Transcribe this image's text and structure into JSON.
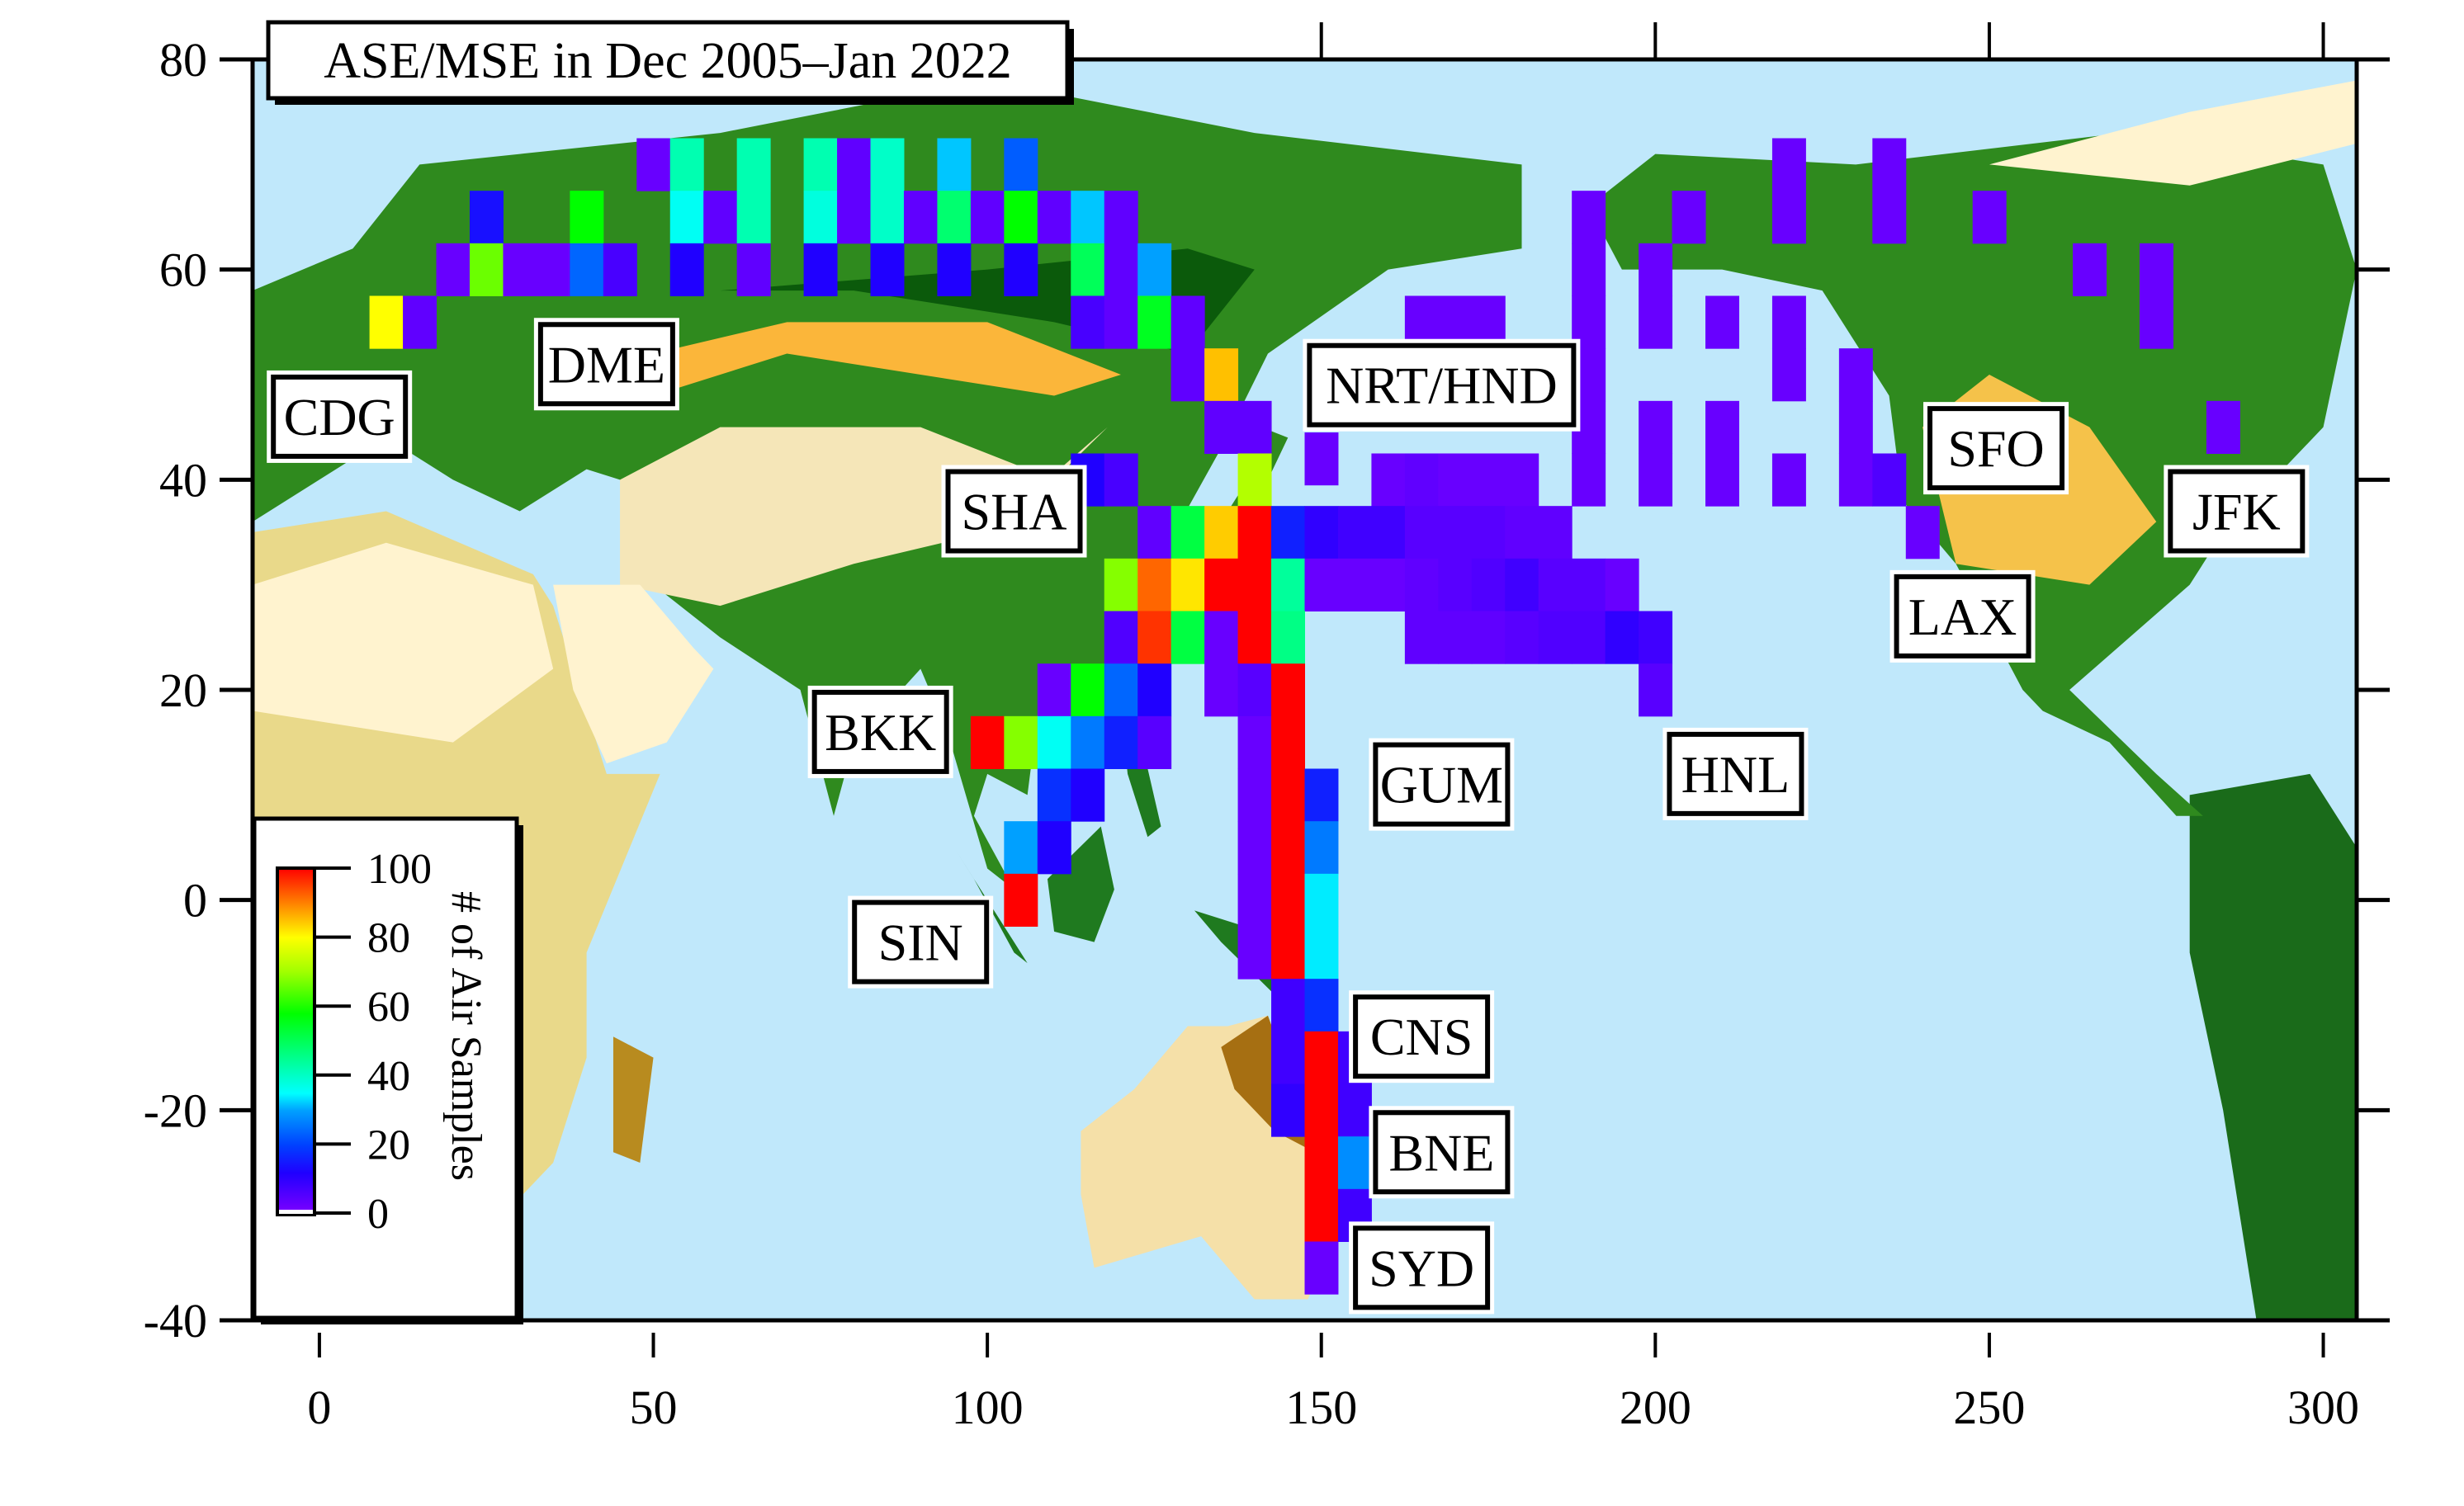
{
  "chart_data": {
    "type": "heatmap",
    "title": "ASE/MSE in Dec 2005–Jan 2022",
    "xlabel": "",
    "ylabel": "",
    "xlim": [
      -10,
      305
    ],
    "ylim": [
      -40,
      80
    ],
    "x_ticks": [
      0,
      50,
      100,
      150,
      200,
      250,
      300
    ],
    "y_ticks": [
      -40,
      -20,
      0,
      20,
      40,
      60,
      80
    ],
    "grid": false,
    "cell_size_deg": [
      5,
      5
    ],
    "background": "global land cover map (ocean light blue)",
    "colorbar": {
      "label": "# of Air Samples",
      "ticks": [
        0,
        20,
        40,
        60,
        80,
        100
      ],
      "range": [
        0,
        100
      ],
      "colormap": [
        "#8000ff",
        "#0000ff",
        "#00a0ff",
        "#00ffff",
        "#00ff80",
        "#00ff00",
        "#80ff00",
        "#ffff00",
        "#ff8000",
        "#ff0000"
      ],
      "position": "lower-left inside plot"
    },
    "airport_labels": [
      {
        "code": "CDG",
        "x": 3,
        "y": 46
      },
      {
        "code": "DME",
        "x": 43,
        "y": 51
      },
      {
        "code": "SHA",
        "x": 104,
        "y": 37
      },
      {
        "code": "NRT/HND",
        "x": 168,
        "y": 49
      },
      {
        "code": "BKK",
        "x": 84,
        "y": 16
      },
      {
        "code": "SIN",
        "x": 90,
        "y": -4
      },
      {
        "code": "GUM",
        "x": 168,
        "y": 11
      },
      {
        "code": "HNL",
        "x": 212,
        "y": 12
      },
      {
        "code": "SFO",
        "x": 251,
        "y": 43
      },
      {
        "code": "LAX",
        "x": 246,
        "y": 27
      },
      {
        "code": "JFK",
        "x": 287,
        "y": 37
      },
      {
        "code": "CNS",
        "x": 165,
        "y": -13
      },
      {
        "code": "BNE",
        "x": 168,
        "y": -24
      },
      {
        "code": "SYD",
        "x": 165,
        "y": -35
      }
    ],
    "cells": [
      {
        "lon": 50,
        "lat": 70,
        "n": 3
      },
      {
        "lon": 55,
        "lat": 70,
        "n": 42
      },
      {
        "lon": 65,
        "lat": 70,
        "n": 42
      },
      {
        "lon": 75,
        "lat": 70,
        "n": 42
      },
      {
        "lon": 80,
        "lat": 70,
        "n": 4
      },
      {
        "lon": 85,
        "lat": 70,
        "n": 40
      },
      {
        "lon": 95,
        "lat": 70,
        "n": 32
      },
      {
        "lon": 105,
        "lat": 70,
        "n": 23
      },
      {
        "lon": 25,
        "lat": 65,
        "n": 14
      },
      {
        "lon": 40,
        "lat": 65,
        "n": 58
      },
      {
        "lon": 55,
        "lat": 65,
        "n": 36
      },
      {
        "lon": 60,
        "lat": 65,
        "n": 4
      },
      {
        "lon": 65,
        "lat": 65,
        "n": 42
      },
      {
        "lon": 75,
        "lat": 65,
        "n": 38
      },
      {
        "lon": 80,
        "lat": 65,
        "n": 4
      },
      {
        "lon": 85,
        "lat": 65,
        "n": 40
      },
      {
        "lon": 90,
        "lat": 65,
        "n": 4
      },
      {
        "lon": 95,
        "lat": 65,
        "n": 48
      },
      {
        "lon": 100,
        "lat": 65,
        "n": 4
      },
      {
        "lon": 105,
        "lat": 65,
        "n": 58
      },
      {
        "lon": 110,
        "lat": 65,
        "n": 4
      },
      {
        "lon": 115,
        "lat": 65,
        "n": 32
      },
      {
        "lon": 120,
        "lat": 65,
        "n": 4
      },
      {
        "lon": 20,
        "lat": 60,
        "n": 3
      },
      {
        "lon": 25,
        "lat": 60,
        "n": 66
      },
      {
        "lon": 30,
        "lat": 60,
        "n": 3
      },
      {
        "lon": 35,
        "lat": 60,
        "n": 3
      },
      {
        "lon": 40,
        "lat": 60,
        "n": 24
      },
      {
        "lon": 45,
        "lat": 60,
        "n": 7
      },
      {
        "lon": 55,
        "lat": 60,
        "n": 12
      },
      {
        "lon": 65,
        "lat": 60,
        "n": 4
      },
      {
        "lon": 75,
        "lat": 60,
        "n": 12
      },
      {
        "lon": 85,
        "lat": 60,
        "n": 12
      },
      {
        "lon": 95,
        "lat": 60,
        "n": 12
      },
      {
        "lon": 105,
        "lat": 60,
        "n": 12
      },
      {
        "lon": 115,
        "lat": 60,
        "n": 50
      },
      {
        "lon": 120,
        "lat": 60,
        "n": 4
      },
      {
        "lon": 125,
        "lat": 60,
        "n": 30
      },
      {
        "lon": 10,
        "lat": 55,
        "n": 80
      },
      {
        "lon": 15,
        "lat": 55,
        "n": 4
      },
      {
        "lon": 115,
        "lat": 55,
        "n": 7
      },
      {
        "lon": 120,
        "lat": 55,
        "n": 4
      },
      {
        "lon": 125,
        "lat": 55,
        "n": 55
      },
      {
        "lon": 130,
        "lat": 55,
        "n": 4
      },
      {
        "lon": 165,
        "lat": 55,
        "n": 3
      },
      {
        "lon": 170,
        "lat": 55,
        "n": 3
      },
      {
        "lon": 175,
        "lat": 55,
        "n": 3
      },
      {
        "lon": 190,
        "lat": 55,
        "n": 3
      },
      {
        "lon": 200,
        "lat": 55,
        "n": 3
      },
      {
        "lon": 210,
        "lat": 55,
        "n": 3
      },
      {
        "lon": 220,
        "lat": 55,
        "n": 3
      },
      {
        "lon": 275,
        "lat": 55,
        "n": 3
      },
      {
        "lon": 190,
        "lat": 65,
        "n": 3
      },
      {
        "lon": 205,
        "lat": 65,
        "n": 3
      },
      {
        "lon": 220,
        "lat": 70,
        "n": 3
      },
      {
        "lon": 220,
        "lat": 65,
        "n": 3
      },
      {
        "lon": 235,
        "lat": 70,
        "n": 3
      },
      {
        "lon": 235,
        "lat": 65,
        "n": 3
      },
      {
        "lon": 250,
        "lat": 65,
        "n": 3
      },
      {
        "lon": 265,
        "lat": 60,
        "n": 3
      },
      {
        "lon": 275,
        "lat": 60,
        "n": 3
      },
      {
        "lon": 190,
        "lat": 60,
        "n": 3
      },
      {
        "lon": 200,
        "lat": 60,
        "n": 3
      },
      {
        "lon": 130,
        "lat": 50,
        "n": 4
      },
      {
        "lon": 135,
        "lat": 50,
        "n": 85
      },
      {
        "lon": 190,
        "lat": 50,
        "n": 3
      },
      {
        "lon": 230,
        "lat": 50,
        "n": 3
      },
      {
        "lon": 220,
        "lat": 50,
        "n": 3
      },
      {
        "lon": 135,
        "lat": 45,
        "n": 4
      },
      {
        "lon": 140,
        "lat": 45,
        "n": 4
      },
      {
        "lon": 190,
        "lat": 45,
        "n": 3
      },
      {
        "lon": 200,
        "lat": 45,
        "n": 3
      },
      {
        "lon": 210,
        "lat": 45,
        "n": 3
      },
      {
        "lon": 230,
        "lat": 45,
        "n": 3
      },
      {
        "lon": 285,
        "lat": 45,
        "n": 3
      },
      {
        "lon": 150,
        "lat": 42,
        "n": 3
      },
      {
        "lon": 115,
        "lat": 40,
        "n": 12
      },
      {
        "lon": 120,
        "lat": 40,
        "n": 7
      },
      {
        "lon": 140,
        "lat": 40,
        "n": 72
      },
      {
        "lon": 160,
        "lat": 40,
        "n": 3
      },
      {
        "lon": 165,
        "lat": 40,
        "n": 4
      },
      {
        "lon": 170,
        "lat": 40,
        "n": 3
      },
      {
        "lon": 175,
        "lat": 40,
        "n": 3
      },
      {
        "lon": 180,
        "lat": 40,
        "n": 3
      },
      {
        "lon": 190,
        "lat": 40,
        "n": 3
      },
      {
        "lon": 200,
        "lat": 40,
        "n": 3
      },
      {
        "lon": 210,
        "lat": 40,
        "n": 3
      },
      {
        "lon": 220,
        "lat": 40,
        "n": 3
      },
      {
        "lon": 230,
        "lat": 40,
        "n": 3
      },
      {
        "lon": 235,
        "lat": 40,
        "n": 6
      },
      {
        "lon": 125,
        "lat": 35,
        "n": 4
      },
      {
        "lon": 130,
        "lat": 35,
        "n": 52
      },
      {
        "lon": 135,
        "lat": 35,
        "n": 84
      },
      {
        "lon": 140,
        "lat": 35,
        "n": 100
      },
      {
        "lon": 145,
        "lat": 35,
        "n": 16
      },
      {
        "lon": 150,
        "lat": 35,
        "n": 10
      },
      {
        "lon": 155,
        "lat": 35,
        "n": 8
      },
      {
        "lon": 160,
        "lat": 35,
        "n": 8
      },
      {
        "lon": 165,
        "lat": 35,
        "n": 5
      },
      {
        "lon": 170,
        "lat": 35,
        "n": 5
      },
      {
        "lon": 175,
        "lat": 35,
        "n": 5
      },
      {
        "lon": 180,
        "lat": 35,
        "n": 4
      },
      {
        "lon": 185,
        "lat": 35,
        "n": 4
      },
      {
        "lon": 240,
        "lat": 35,
        "n": 3
      },
      {
        "lon": 120,
        "lat": 30,
        "n": 68
      },
      {
        "lon": 125,
        "lat": 30,
        "n": 92
      },
      {
        "lon": 130,
        "lat": 30,
        "n": 82
      },
      {
        "lon": 135,
        "lat": 30,
        "n": 100
      },
      {
        "lon": 140,
        "lat": 30,
        "n": 100
      },
      {
        "lon": 145,
        "lat": 30,
        "n": 44
      },
      {
        "lon": 150,
        "lat": 30,
        "n": 3
      },
      {
        "lon": 155,
        "lat": 30,
        "n": 3
      },
      {
        "lon": 160,
        "lat": 30,
        "n": 3
      },
      {
        "lon": 165,
        "lat": 30,
        "n": 4
      },
      {
        "lon": 170,
        "lat": 30,
        "n": 5
      },
      {
        "lon": 175,
        "lat": 30,
        "n": 6
      },
      {
        "lon": 180,
        "lat": 30,
        "n": 8
      },
      {
        "lon": 185,
        "lat": 30,
        "n": 5
      },
      {
        "lon": 190,
        "lat": 30,
        "n": 5
      },
      {
        "lon": 195,
        "lat": 30,
        "n": 3
      },
      {
        "lon": 120,
        "lat": 25,
        "n": 6
      },
      {
        "lon": 125,
        "lat": 25,
        "n": 96
      },
      {
        "lon": 130,
        "lat": 25,
        "n": 52
      },
      {
        "lon": 135,
        "lat": 25,
        "n": 3
      },
      {
        "lon": 140,
        "lat": 25,
        "n": 100
      },
      {
        "lon": 145,
        "lat": 25,
        "n": 46
      },
      {
        "lon": 165,
        "lat": 25,
        "n": 4
      },
      {
        "lon": 170,
        "lat": 25,
        "n": 4
      },
      {
        "lon": 175,
        "lat": 25,
        "n": 4
      },
      {
        "lon": 180,
        "lat": 25,
        "n": 5
      },
      {
        "lon": 185,
        "lat": 25,
        "n": 6
      },
      {
        "lon": 190,
        "lat": 25,
        "n": 6
      },
      {
        "lon": 195,
        "lat": 25,
        "n": 10
      },
      {
        "lon": 200,
        "lat": 25,
        "n": 8
      },
      {
        "lon": 110,
        "lat": 20,
        "n": 3
      },
      {
        "lon": 115,
        "lat": 20,
        "n": 58
      },
      {
        "lon": 120,
        "lat": 20,
        "n": 24
      },
      {
        "lon": 125,
        "lat": 20,
        "n": 12
      },
      {
        "lon": 135,
        "lat": 20,
        "n": 3
      },
      {
        "lon": 140,
        "lat": 20,
        "n": 5
      },
      {
        "lon": 145,
        "lat": 20,
        "n": 100
      },
      {
        "lon": 200,
        "lat": 20,
        "n": 5
      },
      {
        "lon": 100,
        "lat": 15,
        "n": 100
      },
      {
        "lon": 105,
        "lat": 15,
        "n": 68
      },
      {
        "lon": 110,
        "lat": 15,
        "n": 36
      },
      {
        "lon": 115,
        "lat": 15,
        "n": 26
      },
      {
        "lon": 120,
        "lat": 15,
        "n": 16
      },
      {
        "lon": 125,
        "lat": 15,
        "n": 5
      },
      {
        "lon": 140,
        "lat": 15,
        "n": 3
      },
      {
        "lon": 145,
        "lat": 15,
        "n": 100
      },
      {
        "lon": 110,
        "lat": 10,
        "n": 18
      },
      {
        "lon": 115,
        "lat": 10,
        "n": 12
      },
      {
        "lon": 140,
        "lat": 10,
        "n": 3
      },
      {
        "lon": 145,
        "lat": 10,
        "n": 100
      },
      {
        "lon": 150,
        "lat": 10,
        "n": 16
      },
      {
        "lon": 105,
        "lat": 5,
        "n": 30
      },
      {
        "lon": 110,
        "lat": 5,
        "n": 12
      },
      {
        "lon": 140,
        "lat": 5,
        "n": 3
      },
      {
        "lon": 145,
        "lat": 5,
        "n": 100
      },
      {
        "lon": 150,
        "lat": 5,
        "n": 26
      },
      {
        "lon": 105,
        "lat": 0,
        "n": 100
      },
      {
        "lon": 140,
        "lat": 0,
        "n": 3
      },
      {
        "lon": 145,
        "lat": 0,
        "n": 100
      },
      {
        "lon": 150,
        "lat": 0,
        "n": 34
      },
      {
        "lon": 140,
        "lat": -5,
        "n": 3
      },
      {
        "lon": 145,
        "lat": -5,
        "n": 100
      },
      {
        "lon": 150,
        "lat": -5,
        "n": 34
      },
      {
        "lon": 145,
        "lat": -10,
        "n": 8
      },
      {
        "lon": 150,
        "lat": -10,
        "n": 18
      },
      {
        "lon": 145,
        "lat": -15,
        "n": 8
      },
      {
        "lon": 150,
        "lat": -15,
        "n": 100
      },
      {
        "lon": 155,
        "lat": -15,
        "n": 8
      },
      {
        "lon": 145,
        "lat": -20,
        "n": 10
      },
      {
        "lon": 150,
        "lat": -20,
        "n": 100
      },
      {
        "lon": 155,
        "lat": -20,
        "n": 8
      },
      {
        "lon": 150,
        "lat": -25,
        "n": 100
      },
      {
        "lon": 155,
        "lat": -25,
        "n": 28
      },
      {
        "lon": 150,
        "lat": -30,
        "n": 100
      },
      {
        "lon": 155,
        "lat": -30,
        "n": 8
      },
      {
        "lon": 150,
        "lat": -35,
        "n": 3
      }
    ]
  },
  "figure": {
    "title": "ASE/MSE in Dec 2005–Jan 2022",
    "colorbar_label": "# of Air Samples",
    "colors": {
      "ocean": "#c0e8fb",
      "frame": "#000000",
      "box_fill": "#ffffff"
    }
  }
}
